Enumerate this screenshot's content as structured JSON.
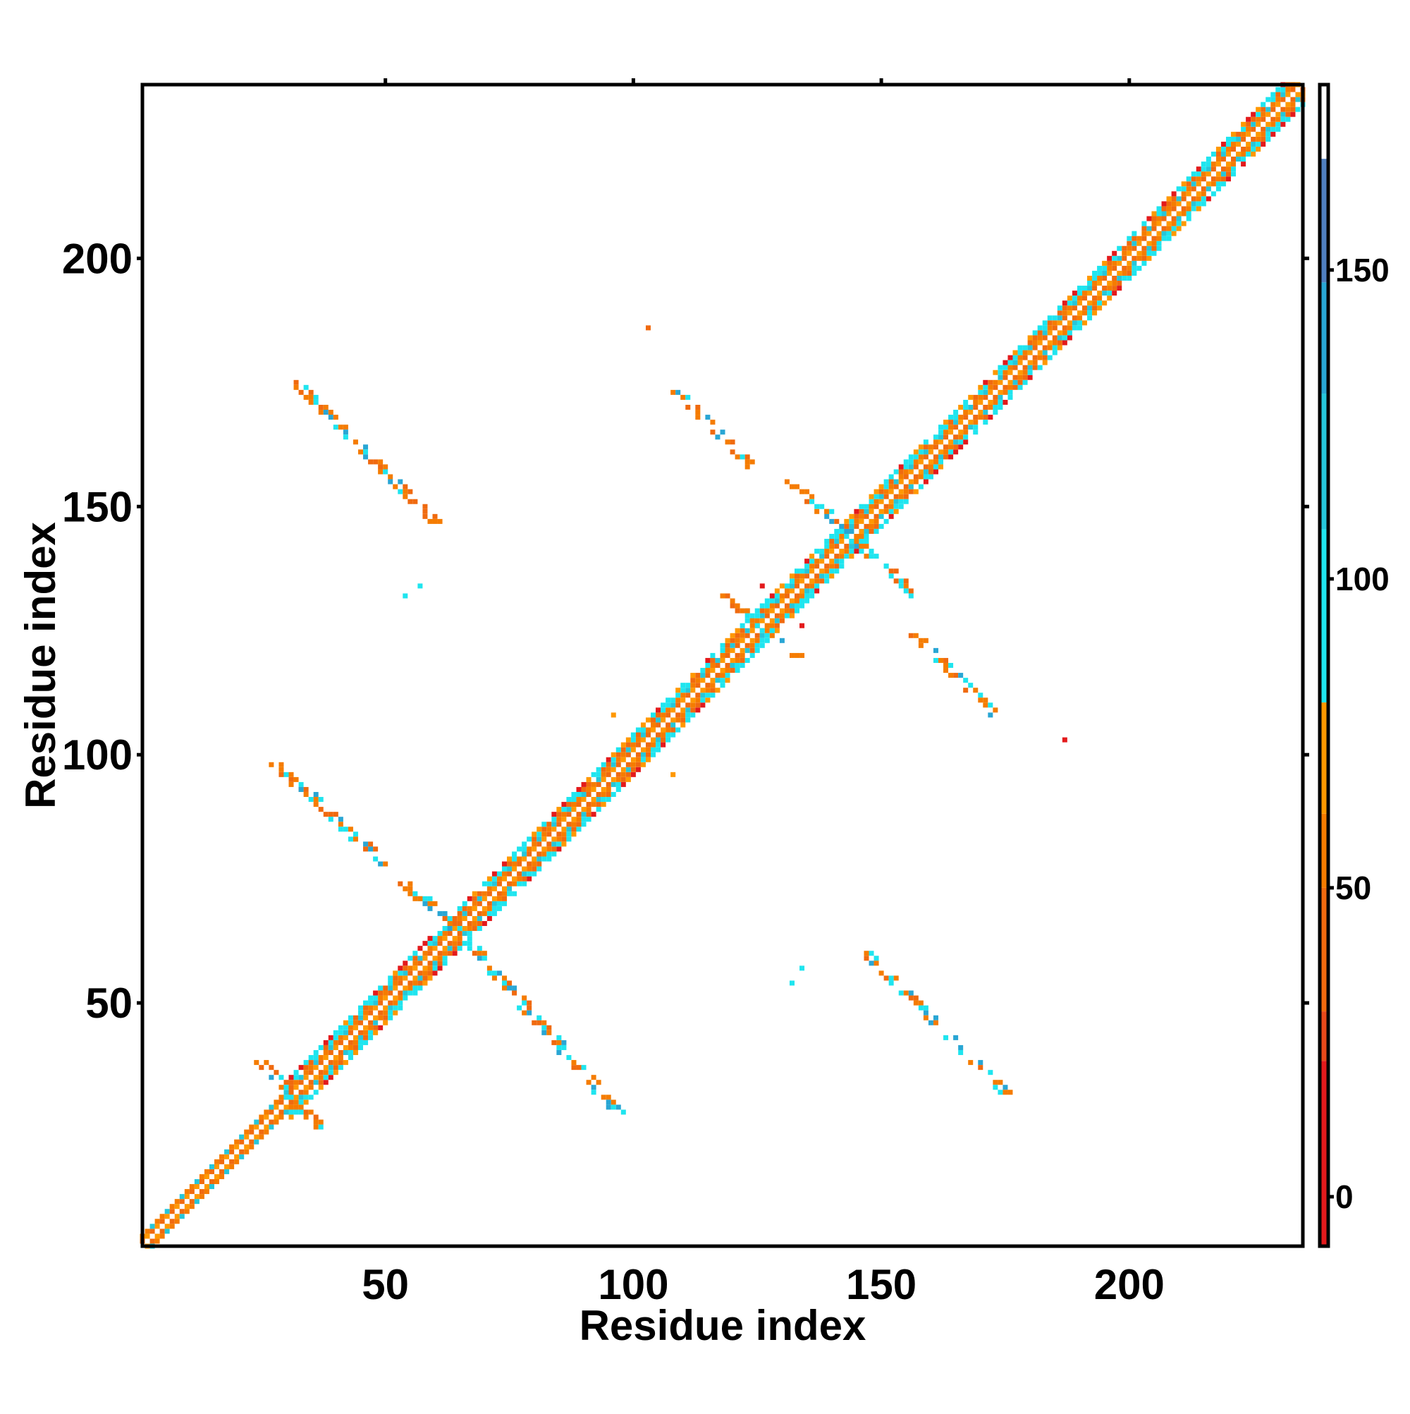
{
  "chart_data": {
    "type": "heatmap",
    "title": "",
    "xlabel": "Residue index",
    "ylabel": "Residue index",
    "xlim": [
      1,
      235
    ],
    "ylim": [
      1,
      235
    ],
    "xticks": [
      50,
      100,
      150,
      200
    ],
    "yticks": [
      50,
      100,
      150,
      200
    ],
    "grid": false,
    "legend": "none",
    "colorbar": {
      "range": [
        -8,
        180
      ],
      "ticks": [
        0,
        50,
        100,
        150
      ],
      "bands": [
        {
          "from": -8,
          "to": 22,
          "color": "#e31a1c"
        },
        {
          "from": 22,
          "to": 30,
          "color": "#e8491a"
        },
        {
          "from": 30,
          "to": 50,
          "color": "#f06a0f"
        },
        {
          "from": 50,
          "to": 62,
          "color": "#f57c00"
        },
        {
          "from": 62,
          "to": 80,
          "color": "#ff9800"
        },
        {
          "from": 80,
          "to": 108,
          "color": "#1fe5ef"
        },
        {
          "from": 108,
          "to": 130,
          "color": "#26c6da"
        },
        {
          "from": 130,
          "to": 148,
          "color": "#29a6d4"
        },
        {
          "from": 148,
          "to": 168,
          "color": "#4f7fbf"
        },
        {
          "from": 168,
          "to": 180,
          "color": "#ffffff"
        }
      ]
    },
    "main_diagonal": {
      "from": 1,
      "to": 235,
      "halfwidth_segments": [
        {
          "from": 1,
          "to": 30,
          "halfwidth": 2
        },
        {
          "from": 30,
          "to": 64,
          "halfwidth": 4
        },
        {
          "from": 64,
          "to": 124,
          "halfwidth": 4
        },
        {
          "from": 124,
          "to": 176,
          "halfwidth": 4
        },
        {
          "from": 176,
          "to": 235,
          "halfwidth": 4
        }
      ]
    },
    "contact_bands": [
      {
        "x0": 32,
        "y0": 175,
        "x1": 60,
        "y1": 147
      },
      {
        "x0": 109,
        "y0": 173,
        "x1": 124,
        "y1": 158
      },
      {
        "x0": 28,
        "y0": 98,
        "x1": 64,
        "y1": 65
      },
      {
        "x0": 67,
        "y0": 62,
        "x1": 97,
        "y1": 28
      },
      {
        "x0": 147,
        "y0": 60,
        "x1": 175,
        "y1": 32
      },
      {
        "x0": 157,
        "y0": 124,
        "x1": 173,
        "y1": 108
      },
      {
        "x0": 132,
        "y0": 155,
        "x1": 157,
        "y1": 132
      },
      {
        "x0": 119,
        "y0": 132,
        "x1": 133,
        "y1": 120
      },
      {
        "x0": 25,
        "y0": 38,
        "x1": 37,
        "y1": 25
      }
    ],
    "isolated_points": [
      {
        "x": 103,
        "y": 186,
        "value": 40
      },
      {
        "x": 187,
        "y": 103,
        "value": 5
      },
      {
        "x": 96,
        "y": 108,
        "value": 70
      },
      {
        "x": 108,
        "y": 96,
        "value": 70
      },
      {
        "x": 54,
        "y": 132,
        "value": 95
      },
      {
        "x": 57,
        "y": 134,
        "value": 95
      },
      {
        "x": 132,
        "y": 54,
        "value": 95
      },
      {
        "x": 134,
        "y": 57,
        "value": 95
      },
      {
        "x": 126,
        "y": 134,
        "value": 5
      },
      {
        "x": 134,
        "y": 126,
        "value": 5
      }
    ]
  }
}
